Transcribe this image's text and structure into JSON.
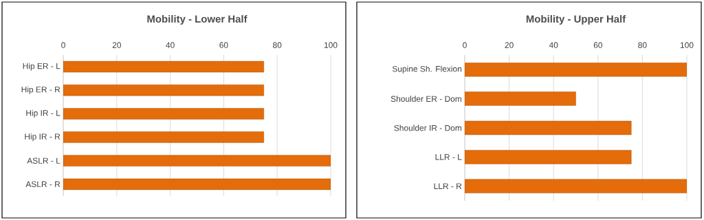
{
  "chart_data": [
    {
      "type": "bar",
      "orientation": "horizontal",
      "title": "Mobility - Lower Half",
      "categories": [
        "Hip ER - L",
        "Hip ER - R",
        "Hip IR - L",
        "Hip IR - R",
        "ASLR - L",
        "ASLR - R"
      ],
      "values": [
        75,
        75,
        75,
        75,
        100,
        100
      ],
      "color": "#e46c0a",
      "xlim": [
        0,
        100
      ],
      "xticks": [
        0,
        20,
        40,
        60,
        80,
        100
      ],
      "grid": "x"
    },
    {
      "type": "bar",
      "orientation": "horizontal",
      "title": "Mobility - Upper Half",
      "categories": [
        "Supine Sh. Flexion",
        "Shoulder ER - Dom",
        "Shoulder IR - Dom",
        "LLR - L",
        "LLR - R"
      ],
      "values": [
        100,
        50,
        75,
        75,
        100
      ],
      "color": "#e46c0a",
      "xlim": [
        0,
        100
      ],
      "xticks": [
        0,
        20,
        40,
        60,
        80,
        100
      ],
      "grid": "x"
    }
  ]
}
